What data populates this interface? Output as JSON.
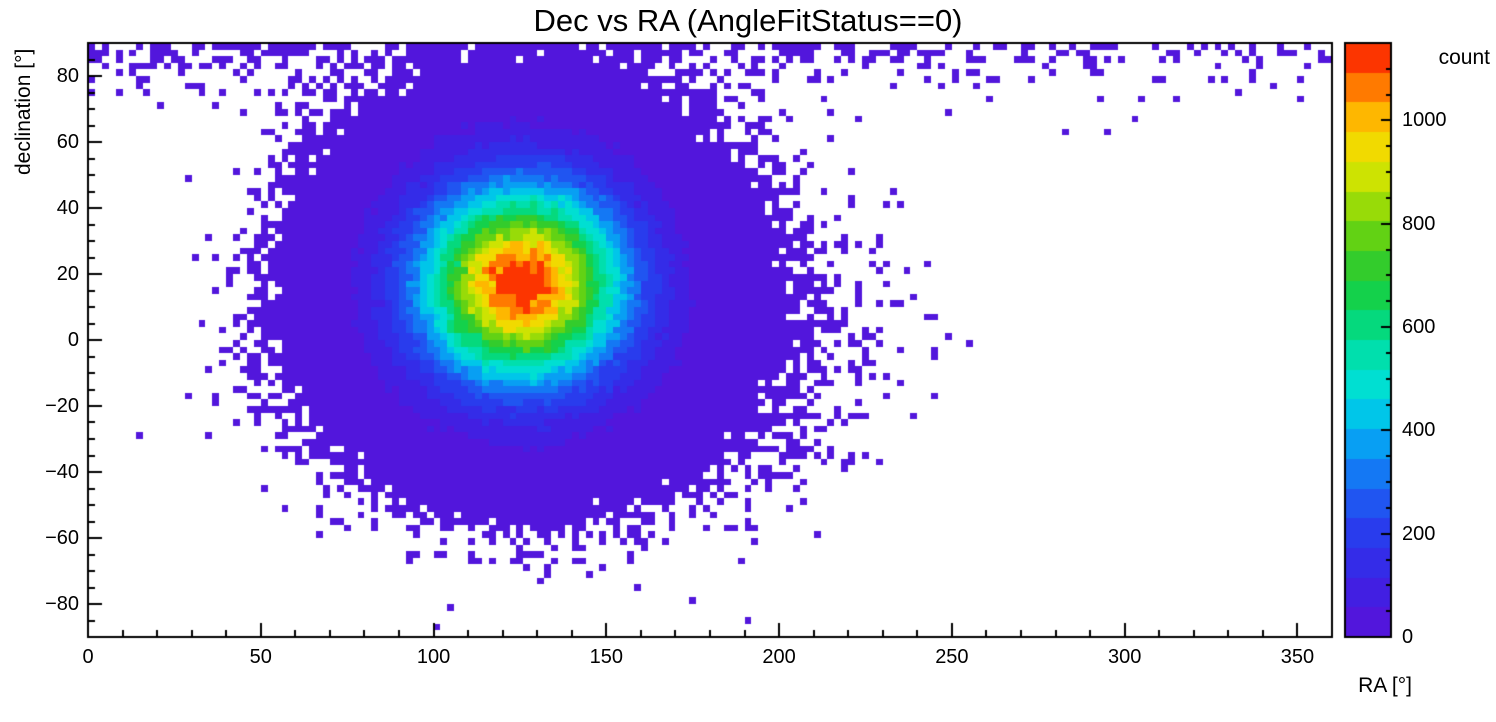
{
  "chart_data": {
    "type": "heatmap",
    "title": "Dec vs RA (AngleFitStatus==0)",
    "xlabel": "RA [°]",
    "ylabel": "declination [°]",
    "zlabel": "count",
    "x_range": [
      0,
      360
    ],
    "y_range": [
      -90,
      90
    ],
    "z_range": [
      0,
      1150
    ],
    "n_bins_x": 180,
    "n_bins_y": 90,
    "x_ticks": [
      0,
      50,
      100,
      150,
      200,
      250,
      300,
      350
    ],
    "x_minor_tick_step": 10,
    "y_ticks": [
      -80,
      -60,
      -40,
      -20,
      0,
      20,
      40,
      60,
      80
    ],
    "y_minor_tick_step": 5,
    "z_ticks": [
      0,
      200,
      400,
      600,
      800,
      1000
    ],
    "z_minor_tick_step": 50,
    "n_contours": 20,
    "grid": false,
    "legend_position": "right-colorbar",
    "background_color": "#ffffff",
    "axis_color": "#000000",
    "colormap_stops": [
      [
        0.0,
        "#5a12d9"
      ],
      [
        0.08,
        "#4020e3"
      ],
      [
        0.16,
        "#2b35ec"
      ],
      [
        0.24,
        "#1e5cf2"
      ],
      [
        0.31,
        "#0b93f5"
      ],
      [
        0.37,
        "#00c3eb"
      ],
      [
        0.43,
        "#00e2d0"
      ],
      [
        0.5,
        "#00dd9a"
      ],
      [
        0.56,
        "#0cd355"
      ],
      [
        0.62,
        "#2ecb2e"
      ],
      [
        0.68,
        "#67d312"
      ],
      [
        0.74,
        "#a8de04"
      ],
      [
        0.8,
        "#e7e600"
      ],
      [
        0.86,
        "#fec800"
      ],
      [
        0.91,
        "#ff8f00"
      ],
      [
        0.96,
        "#ff4a00"
      ],
      [
        1.0,
        "#f61300"
      ]
    ],
    "distribution_model": {
      "core": {
        "ra_center": 125.5,
        "dec_center": 17,
        "ra_sigma": 20,
        "dec_sigma": 20,
        "peak_count": 1150
      },
      "halo": {
        "ra_center": 140,
        "dec_center": 0,
        "ra_sigma": 33,
        "dec_sigma": 22,
        "amplitude": 8
      },
      "polar_noise": {
        "base": 0.35,
        "ra_peak_amplitude": 1.0,
        "ra_center": 120,
        "ra_sigma": 100,
        "decay_deg": 6
      },
      "random_seed": 12345
    }
  }
}
